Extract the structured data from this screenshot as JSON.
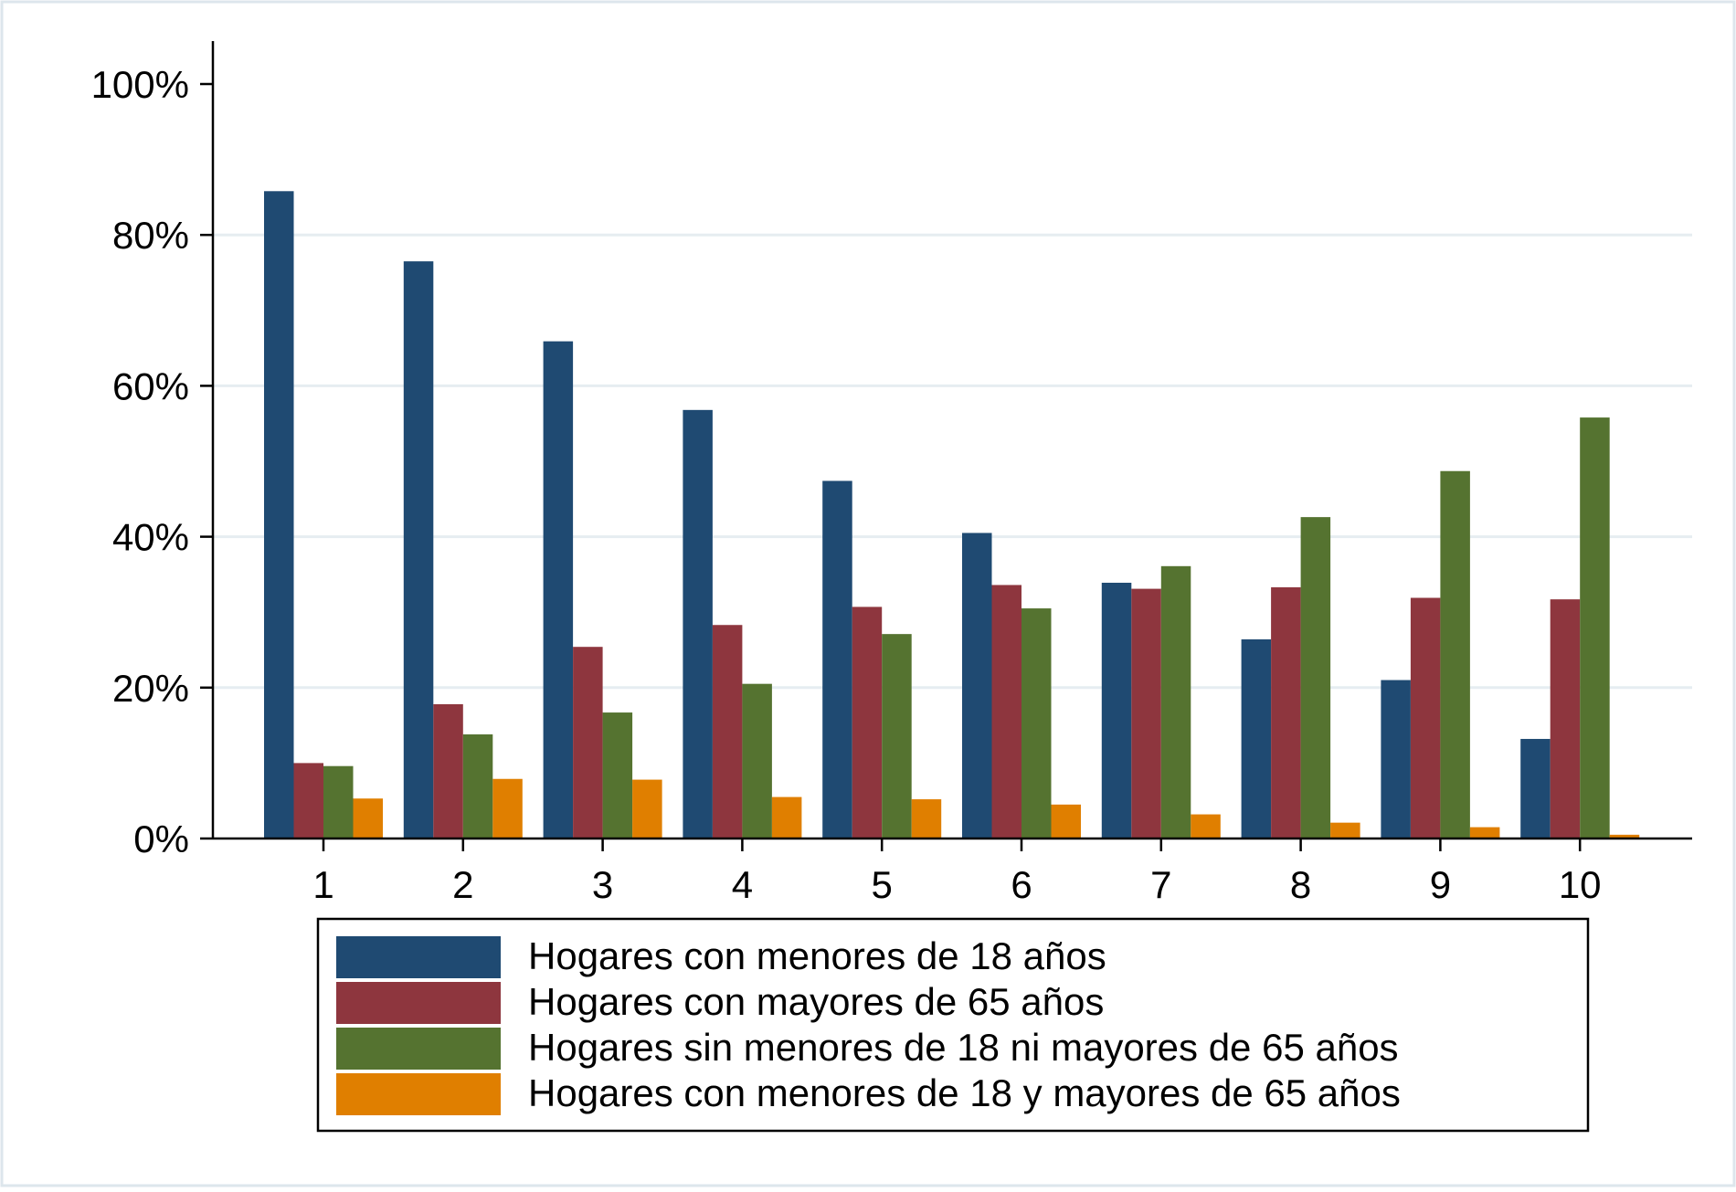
{
  "chart_data": {
    "type": "bar",
    "title": "",
    "xlabel": "",
    "ylabel": "",
    "categories": [
      "1",
      "2",
      "3",
      "4",
      "5",
      "6",
      "7",
      "8",
      "9",
      "10"
    ],
    "ylim": [
      0,
      100
    ],
    "yticks": [
      0,
      20,
      40,
      60,
      80,
      100
    ],
    "ytick_labels": [
      "0%",
      "20%",
      "40%",
      "60%",
      "80%",
      "100%"
    ],
    "grid": true,
    "legend_position": "bottom",
    "series": [
      {
        "name": "Hogares con menores de 18 años",
        "color": "#1f4a72",
        "values": [
          85.8,
          76.5,
          65.9,
          56.8,
          47.4,
          40.5,
          33.9,
          26.4,
          21.0,
          13.2
        ]
      },
      {
        "name": "Hogares con mayores de 65 años",
        "color": "#8e363e",
        "values": [
          10.0,
          17.8,
          25.4,
          28.3,
          30.7,
          33.6,
          33.1,
          33.3,
          31.9,
          31.7
        ]
      },
      {
        "name": "Hogares sin menores de 18 ni mayores de 65 años",
        "color": "#557330",
        "values": [
          9.6,
          13.8,
          16.7,
          20.5,
          27.1,
          30.5,
          36.1,
          42.6,
          48.7,
          55.8
        ]
      },
      {
        "name": "Hogares con menores de 18 y mayores de 65 años",
        "color": "#e07f00",
        "values": [
          5.3,
          7.9,
          7.8,
          5.5,
          5.2,
          4.5,
          3.2,
          2.1,
          1.5,
          0.5
        ]
      }
    ]
  }
}
